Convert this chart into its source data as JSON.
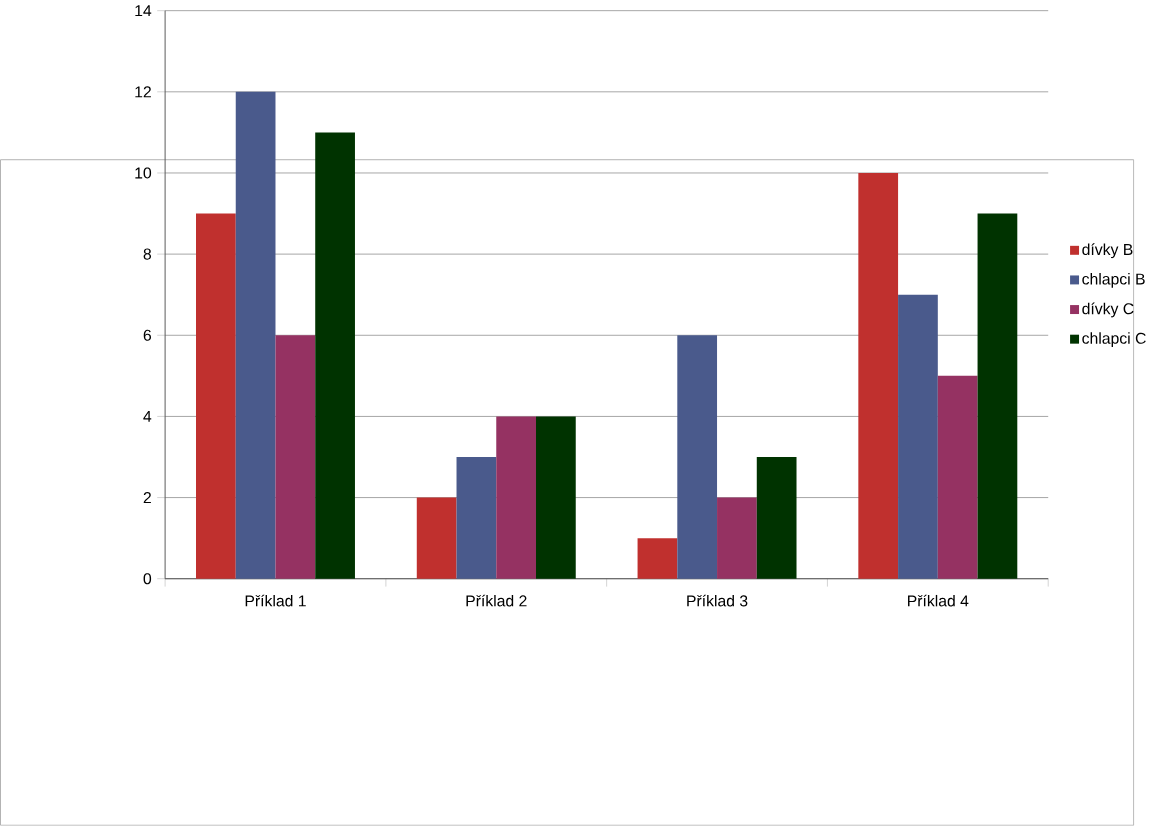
{
  "chart_data": {
    "type": "bar",
    "categories": [
      "Příklad 1",
      "Příklad 2",
      "Příklad 3",
      "Příklad 4"
    ],
    "series": [
      {
        "name": "dívky B",
        "color": "#c0302e",
        "values": [
          9,
          2,
          1,
          10
        ]
      },
      {
        "name": "chlapci B",
        "color": "#4a5a8c",
        "values": [
          12,
          3,
          6,
          7
        ]
      },
      {
        "name": "dívky C",
        "color": "#953262",
        "values": [
          6,
          4,
          2,
          5
        ]
      },
      {
        "name": "chlapci C",
        "color": "#003300",
        "values": [
          11,
          4,
          3,
          9
        ]
      }
    ],
    "ylim": [
      0,
      14
    ],
    "yticks": [
      0,
      2,
      4,
      6,
      8,
      10,
      12,
      14
    ],
    "grid": "y",
    "legend": "right"
  }
}
